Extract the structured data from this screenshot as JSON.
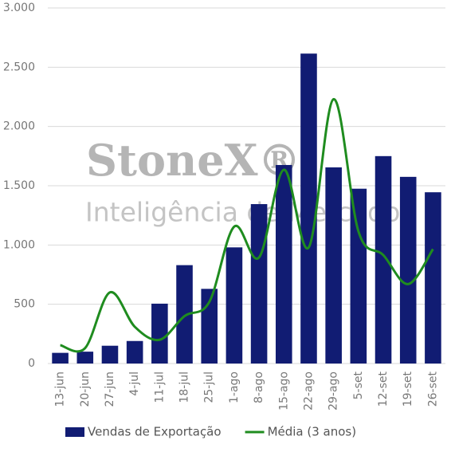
{
  "chart_data": {
    "type": "bar_line",
    "watermark": {
      "brand": "StoneX®",
      "tagline": "Inteligência de Mercado"
    },
    "categories": [
      "13-jun",
      "20-jun",
      "27-jun",
      "4-jul",
      "11-jul",
      "18-jul",
      "25-jul",
      "1-ago",
      "8-ago",
      "15-ago",
      "22-ago",
      "29-ago",
      "5-set",
      "12-set",
      "19-set",
      "26-set"
    ],
    "series": [
      {
        "name": "Vendas de Exportação",
        "type": "bar",
        "color": "#111c73",
        "values": [
          90,
          100,
          150,
          190,
          505,
          830,
          630,
          980,
          1345,
          1675,
          2615,
          1655,
          1475,
          1750,
          1575,
          1445
        ]
      },
      {
        "name": "Média (3 anos)",
        "type": "line",
        "smooth": true,
        "color": "#1f8c1f",
        "values": [
          155,
          130,
          600,
          310,
          200,
          400,
          520,
          1155,
          895,
          1635,
          980,
          2230,
          1115,
          915,
          670,
          965
        ]
      }
    ],
    "ylim": [
      0,
      3000
    ],
    "yticks": [
      0,
      500,
      {
        "value": 1000,
        "label": "1.000"
      },
      {
        "value": 1500,
        "label": "1.500"
      },
      {
        "value": 2000,
        "label": "2.000"
      },
      {
        "value": 2500,
        "label": "2.500"
      },
      {
        "value": 3000,
        "label": "3.000"
      }
    ],
    "grid": true,
    "legend": "bottom"
  }
}
